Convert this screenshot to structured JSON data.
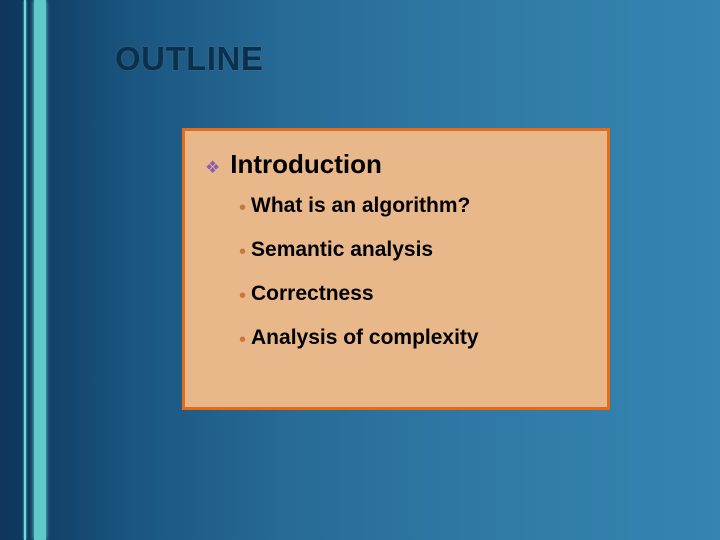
{
  "slide": {
    "title": "OUTLINE",
    "title_color": "#0c2f4a",
    "background_gradient_start": "#0d3559",
    "background_gradient_end": "#3684b2",
    "accent_line_color": "#6fd8d8",
    "content_box": {
      "background_color": "#e8b88a",
      "border_color": "#e56a1a",
      "heading": "Introduction",
      "heading_bullet_color": "#8860b0",
      "sub_bullet_color": "#c8763a",
      "text_color": "#000000",
      "items": [
        "What is an algorithm?",
        "Semantic analysis",
        "Correctness",
        "Analysis of complexity"
      ]
    }
  }
}
